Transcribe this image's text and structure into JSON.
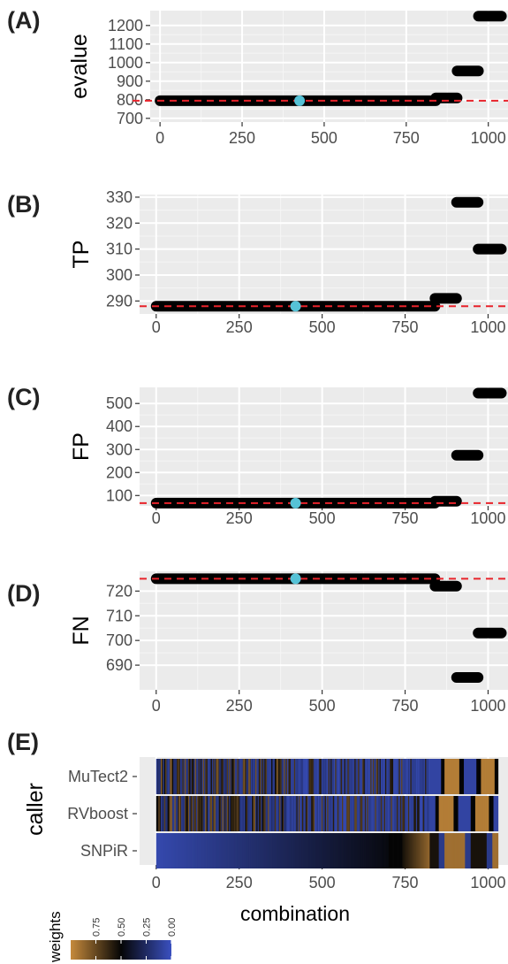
{
  "chart_data": [
    {
      "panel": "(A)",
      "type": "scatter",
      "ylabel": "evalue",
      "xlim": [
        -30,
        1060
      ],
      "ylim": [
        680,
        1280
      ],
      "xticks": [
        0,
        250,
        500,
        750,
        1000
      ],
      "yticks": [
        700,
        800,
        900,
        1000,
        1100,
        1200
      ],
      "segments": [
        {
          "x_from": 0,
          "x_to": 840,
          "y": 795
        },
        {
          "x_from": 840,
          "x_to": 905,
          "y": 810
        },
        {
          "x_from": 905,
          "x_to": 970,
          "y": 955
        },
        {
          "x_from": 970,
          "x_to": 1040,
          "y": 1250
        }
      ],
      "highlight": {
        "x": 425,
        "y": 795,
        "color": "#56c2d6"
      },
      "reference_line": {
        "y": 795,
        "color": "#e8232b",
        "style": "dashed"
      }
    },
    {
      "panel": "(B)",
      "type": "scatter",
      "ylabel": "TP",
      "xlim": [
        -50,
        1060
      ],
      "ylim": [
        285,
        331
      ],
      "xticks": [
        0,
        250,
        500,
        750,
        1000
      ],
      "yticks": [
        290,
        300,
        310,
        320,
        330
      ],
      "segments": [
        {
          "x_from": 0,
          "x_to": 840,
          "y": 288
        },
        {
          "x_from": 840,
          "x_to": 905,
          "y": 291
        },
        {
          "x_from": 905,
          "x_to": 970,
          "y": 328
        },
        {
          "x_from": 970,
          "x_to": 1040,
          "y": 310
        }
      ],
      "highlight": {
        "x": 420,
        "y": 288,
        "color": "#56c2d6"
      },
      "reference_line": {
        "y": 288,
        "color": "#e8232b",
        "style": "dashed"
      }
    },
    {
      "panel": "(C)",
      "type": "scatter",
      "ylabel": "FP",
      "xlim": [
        -50,
        1060
      ],
      "ylim": [
        55,
        570
      ],
      "xticks": [
        0,
        250,
        500,
        750,
        1000
      ],
      "yticks": [
        100,
        200,
        300,
        400,
        500
      ],
      "segments": [
        {
          "x_from": 0,
          "x_to": 840,
          "y": 67
        },
        {
          "x_from": 840,
          "x_to": 905,
          "y": 75
        },
        {
          "x_from": 905,
          "x_to": 970,
          "y": 275
        },
        {
          "x_from": 970,
          "x_to": 1040,
          "y": 545
        }
      ],
      "highlight": {
        "x": 420,
        "y": 67,
        "color": "#56c2d6"
      },
      "reference_line": {
        "y": 67,
        "color": "#e8232b",
        "style": "dashed"
      }
    },
    {
      "panel": "(D)",
      "type": "scatter",
      "ylabel": "FN",
      "xlim": [
        -50,
        1060
      ],
      "ylim": [
        680,
        728
      ],
      "xticks": [
        0,
        250,
        500,
        750,
        1000
      ],
      "yticks": [
        690,
        700,
        710,
        720
      ],
      "segments": [
        {
          "x_from": 0,
          "x_to": 840,
          "y": 725
        },
        {
          "x_from": 840,
          "x_to": 905,
          "y": 722
        },
        {
          "x_from": 905,
          "x_to": 970,
          "y": 685
        },
        {
          "x_from": 970,
          "x_to": 1040,
          "y": 703
        }
      ],
      "highlight": {
        "x": 420,
        "y": 725,
        "color": "#56c2d6"
      },
      "reference_line": {
        "y": 725,
        "color": "#e8232b",
        "style": "dashed"
      }
    },
    {
      "panel": "(E)",
      "type": "heatmap",
      "ylabel": "caller",
      "xlabel": "combination",
      "xlim": [
        -50,
        1060
      ],
      "xticks": [
        0,
        250,
        500,
        750,
        1000
      ],
      "rows": [
        "MuTect2",
        "RVboost",
        "SNPiR"
      ],
      "color_scale": {
        "title": "weights",
        "ticks": [
          "0.75",
          "0.50",
          "0.25",
          "0.00"
        ],
        "stops": [
          {
            "value": 1.0,
            "color": "#c68a3c"
          },
          {
            "value": 0.5,
            "color": "#050505"
          },
          {
            "value": 0.0,
            "color": "#3a50c0"
          }
        ]
      }
    }
  ]
}
